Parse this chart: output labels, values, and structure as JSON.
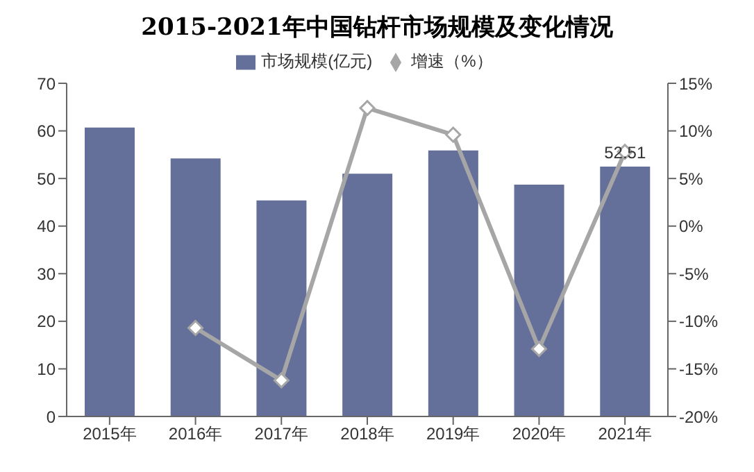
{
  "chart_data": {
    "type": "bar",
    "title": "2015-2021年中国钻杆市场规模及变化情况",
    "categories": [
      "2015年",
      "2016年",
      "2017年",
      "2018年",
      "2019年",
      "2020年",
      "2021年"
    ],
    "series": [
      {
        "name": "市场规模(亿元)",
        "color": "#65709a",
        "values": [
          60.7,
          54.2,
          45.4,
          51.0,
          55.9,
          48.7,
          52.51
        ],
        "value_labels": [
          null,
          null,
          null,
          null,
          null,
          null,
          "52.51"
        ]
      },
      {
        "name": "增速（%）",
        "type": "line",
        "axis": "y2",
        "color": "#a6a6a6",
        "marker": "diamond",
        "values": [
          null,
          -10.7,
          -16.2,
          12.4,
          9.6,
          -12.9,
          7.8
        ]
      }
    ],
    "ylim": [
      0,
      70
    ],
    "yticks": [
      0,
      10,
      20,
      30,
      40,
      50,
      60,
      70
    ],
    "y2lim": [
      -20,
      15
    ],
    "y2ticks": [
      {
        "value": -20,
        "label": "-20%"
      },
      {
        "value": -15,
        "label": "-15%"
      },
      {
        "value": -10,
        "label": "-10%"
      },
      {
        "value": -5,
        "label": "-5%"
      },
      {
        "value": 0,
        "label": "0%"
      },
      {
        "value": 5,
        "label": "5%"
      },
      {
        "value": 10,
        "label": "10%"
      },
      {
        "value": 15,
        "label": "15%"
      }
    ],
    "legend": "top",
    "grid": false
  }
}
